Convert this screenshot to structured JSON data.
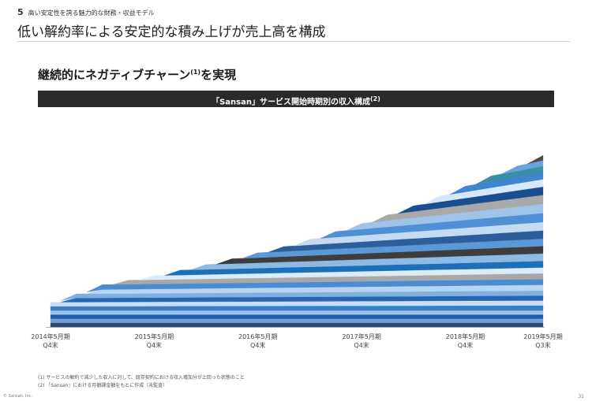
{
  "header": {
    "section_number": "5",
    "section_label": "高い安定性を誇る魅力的な財務・収益モデル",
    "title": "低い解約率による安定的な積み上げが売上高を構成"
  },
  "subheading": {
    "text": "継続的にネガティブチャーン",
    "note_mark": "(1)",
    "text_after": "を実現"
  },
  "chart_data": {
    "type": "area",
    "stacked": true,
    "title": "「Sansan」サービス開始時期別の収入構成",
    "title_note": "(2)",
    "xlabel": "",
    "ylabel": "",
    "y_axis_shown": false,
    "legend": "none",
    "grid": false,
    "unit": "relative monthly revenue (estimated, unlabeled)",
    "x_ticks": [
      {
        "line1": "2014年5月期",
        "line2": "Q4末",
        "t": 0
      },
      {
        "line1": "2015年5月期",
        "line2": "Q4末",
        "t": 4
      },
      {
        "line1": "2016年5月期",
        "line2": "Q4末",
        "t": 8
      },
      {
        "line1": "2017年5月期",
        "line2": "Q4末",
        "t": 12
      },
      {
        "line1": "2018年5月期",
        "line2": "Q4末",
        "t": 16
      },
      {
        "line1": "2019年5月期",
        "line2": "Q3末",
        "t": 19
      }
    ],
    "x_range": [
      0,
      19
    ],
    "ylim": [
      0,
      255
    ],
    "series": [
      {
        "start": 0,
        "v0": 5,
        "v1": 5,
        "color": "#2e4a73"
      },
      {
        "start": 0,
        "v0": 5,
        "v1": 5,
        "color": "#6fa0d8"
      },
      {
        "start": 0,
        "v0": 5,
        "v1": 5,
        "color": "#1f5fa8"
      },
      {
        "start": 0,
        "v0": 5,
        "v1": 5,
        "color": "#9cc3e8"
      },
      {
        "start": 0,
        "v0": 5,
        "v1": 6,
        "color": "#3a7cc7"
      },
      {
        "start": 0,
        "v0": 5,
        "v1": 6,
        "color": "#c8dff3"
      },
      {
        "start": 1,
        "v0": 5,
        "v1": 6,
        "color": "#2667b3"
      },
      {
        "start": 1,
        "v0": 5,
        "v1": 6,
        "color": "#7fb0e2"
      },
      {
        "start": 2,
        "v0": 5,
        "v1": 7,
        "color": "#b8d4ee"
      },
      {
        "start": 2,
        "v0": 6,
        "v1": 7,
        "color": "#4a8bd1"
      },
      {
        "start": 3,
        "v0": 5,
        "v1": 7,
        "color": "#a8a8a8"
      },
      {
        "start": 4,
        "v0": 5,
        "v1": 7,
        "color": "#dcebf8"
      },
      {
        "start": 5,
        "v0": 6,
        "v1": 8,
        "color": "#1d6fb8"
      },
      {
        "start": 6,
        "v0": 6,
        "v1": 9,
        "color": "#8ebbe6"
      },
      {
        "start": 7,
        "v0": 6,
        "v1": 9,
        "color": "#3d3d3d"
      },
      {
        "start": 8,
        "v0": 6,
        "v1": 9,
        "color": "#5b98d8"
      },
      {
        "start": 9,
        "v0": 6,
        "v1": 10,
        "color": "#2b5e9a"
      },
      {
        "start": 10,
        "v0": 7,
        "v1": 10,
        "color": "#c5dbf1"
      },
      {
        "start": 11,
        "v0": 7,
        "v1": 11,
        "color": "#4f8fd3"
      },
      {
        "start": 12,
        "v0": 7,
        "v1": 11,
        "color": "#9ec4ea"
      },
      {
        "start": 13,
        "v0": 7,
        "v1": 11,
        "color": "#a9a9a9"
      },
      {
        "start": 14,
        "v0": 7,
        "v1": 10,
        "color": "#1a4f8f"
      },
      {
        "start": 15,
        "v0": 7,
        "v1": 9,
        "color": "#d6e7f7"
      },
      {
        "start": 16,
        "v0": 7,
        "v1": 8,
        "color": "#3f86cf"
      },
      {
        "start": 17,
        "v0": 7,
        "v1": 8,
        "color": "#3a8fa8"
      },
      {
        "start": 18,
        "v0": 6,
        "v1": 7,
        "color": "#6aa3dc"
      },
      {
        "start": 19,
        "v0": 6,
        "v1": 6,
        "color": "#4a4a4a"
      }
    ]
  },
  "footnotes": [
    "(1) サービスの解約で減少した収入に対して、既存契約における収入増加分が上回った状態のこと",
    "(2) 「Sansan」における月額課金額をもとに作成（未監査）"
  ],
  "copyright": "© Sansan, Inc.",
  "page_number": "31"
}
